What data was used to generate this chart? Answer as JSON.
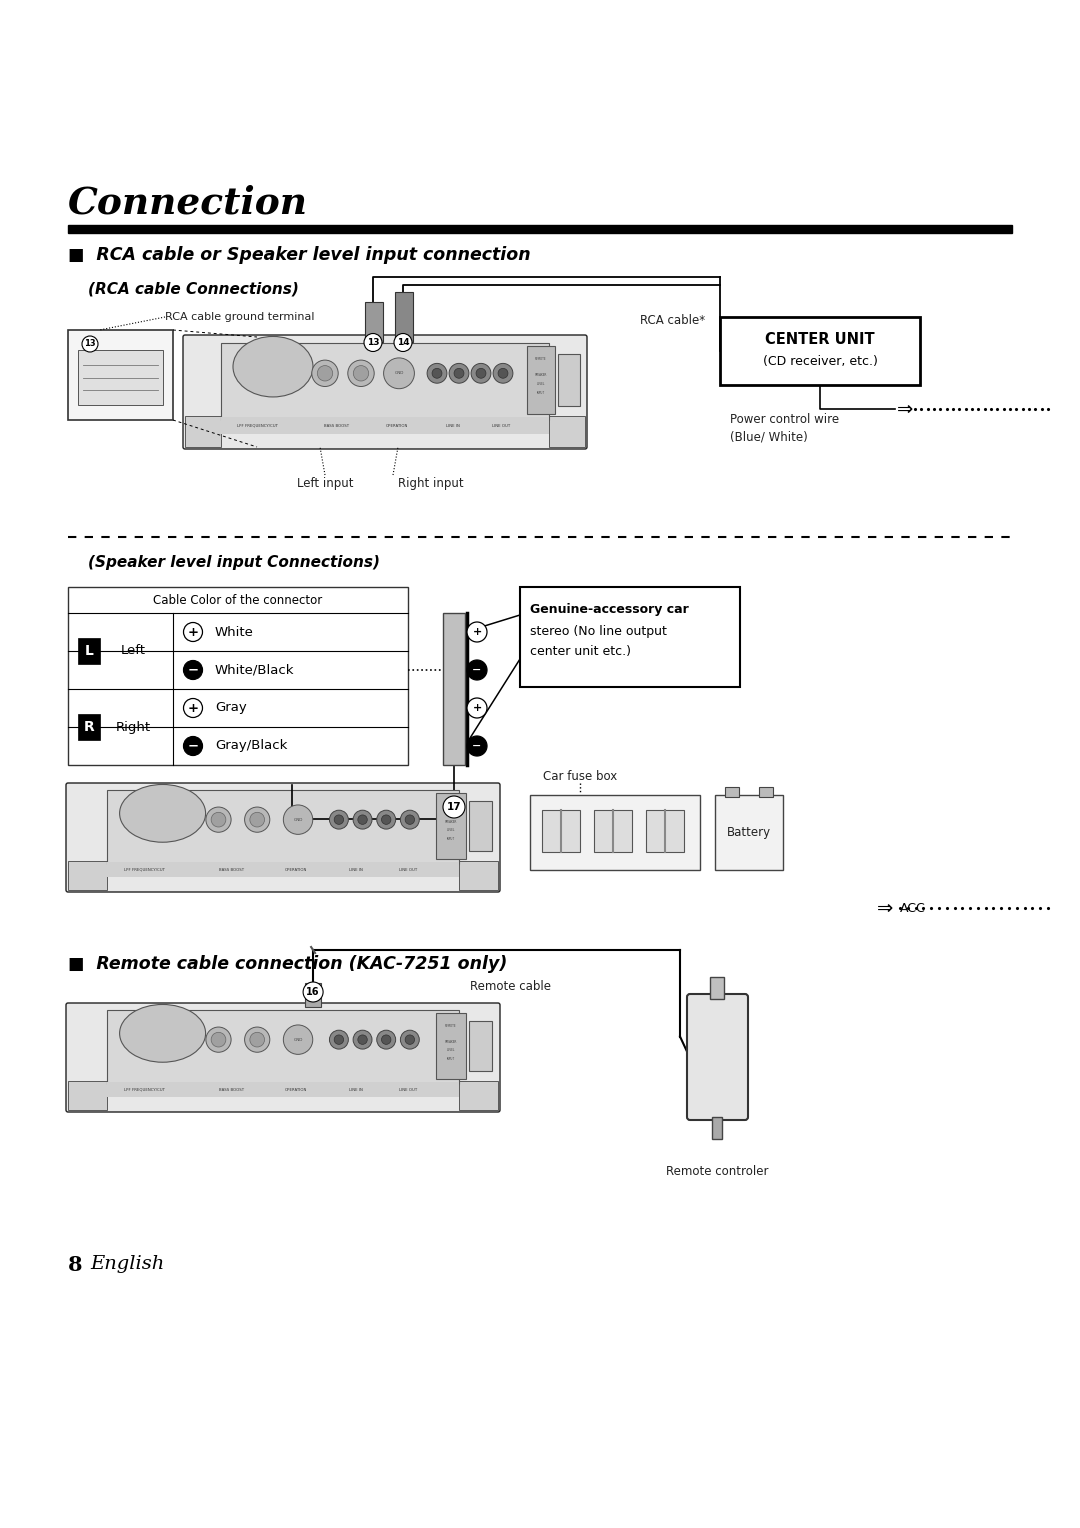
{
  "bg_color": "#ffffff",
  "title": "Connection",
  "section1": "■  RCA cable or Speaker level input connection",
  "sub1": "(RCA cable Connections)",
  "sub2": "(Speaker level input Connections)",
  "section2": "■  Remote cable connection (KAC-7251 only)",
  "lbl_rca_ground": "RCA cable ground terminal",
  "lbl_rca_cable": "RCA cable*",
  "lbl_left_input": "Left input",
  "lbl_right_input": "Right input",
  "lbl_cu1": "CENTER UNIT",
  "lbl_cu2": "(CD receiver, etc.)",
  "lbl_pw1": "Power control wire",
  "lbl_pw2": "(Blue/ White)",
  "lbl_acc": "ACC",
  "lbl_table_title": "Cable Color of the connector",
  "lbl_L": "L",
  "lbl_left": "Left",
  "lbl_R": "R",
  "lbl_right": "Right",
  "lbl_white": "White",
  "lbl_white_black": "White/Black",
  "lbl_gray": "Gray",
  "lbl_gray_black": "Gray/Black",
  "lbl_gen1": "Genuine-accessory car",
  "lbl_gen2": "stereo (No line output",
  "lbl_gen3": "center unit etc.)",
  "lbl_car_fuse": "Car fuse box",
  "lbl_battery": "Battery",
  "lbl_remote_cable": "Remote cable",
  "lbl_remote_ctrl": "Remote controler",
  "lbl_footer_num": "8",
  "lbl_footer_txt": "English"
}
